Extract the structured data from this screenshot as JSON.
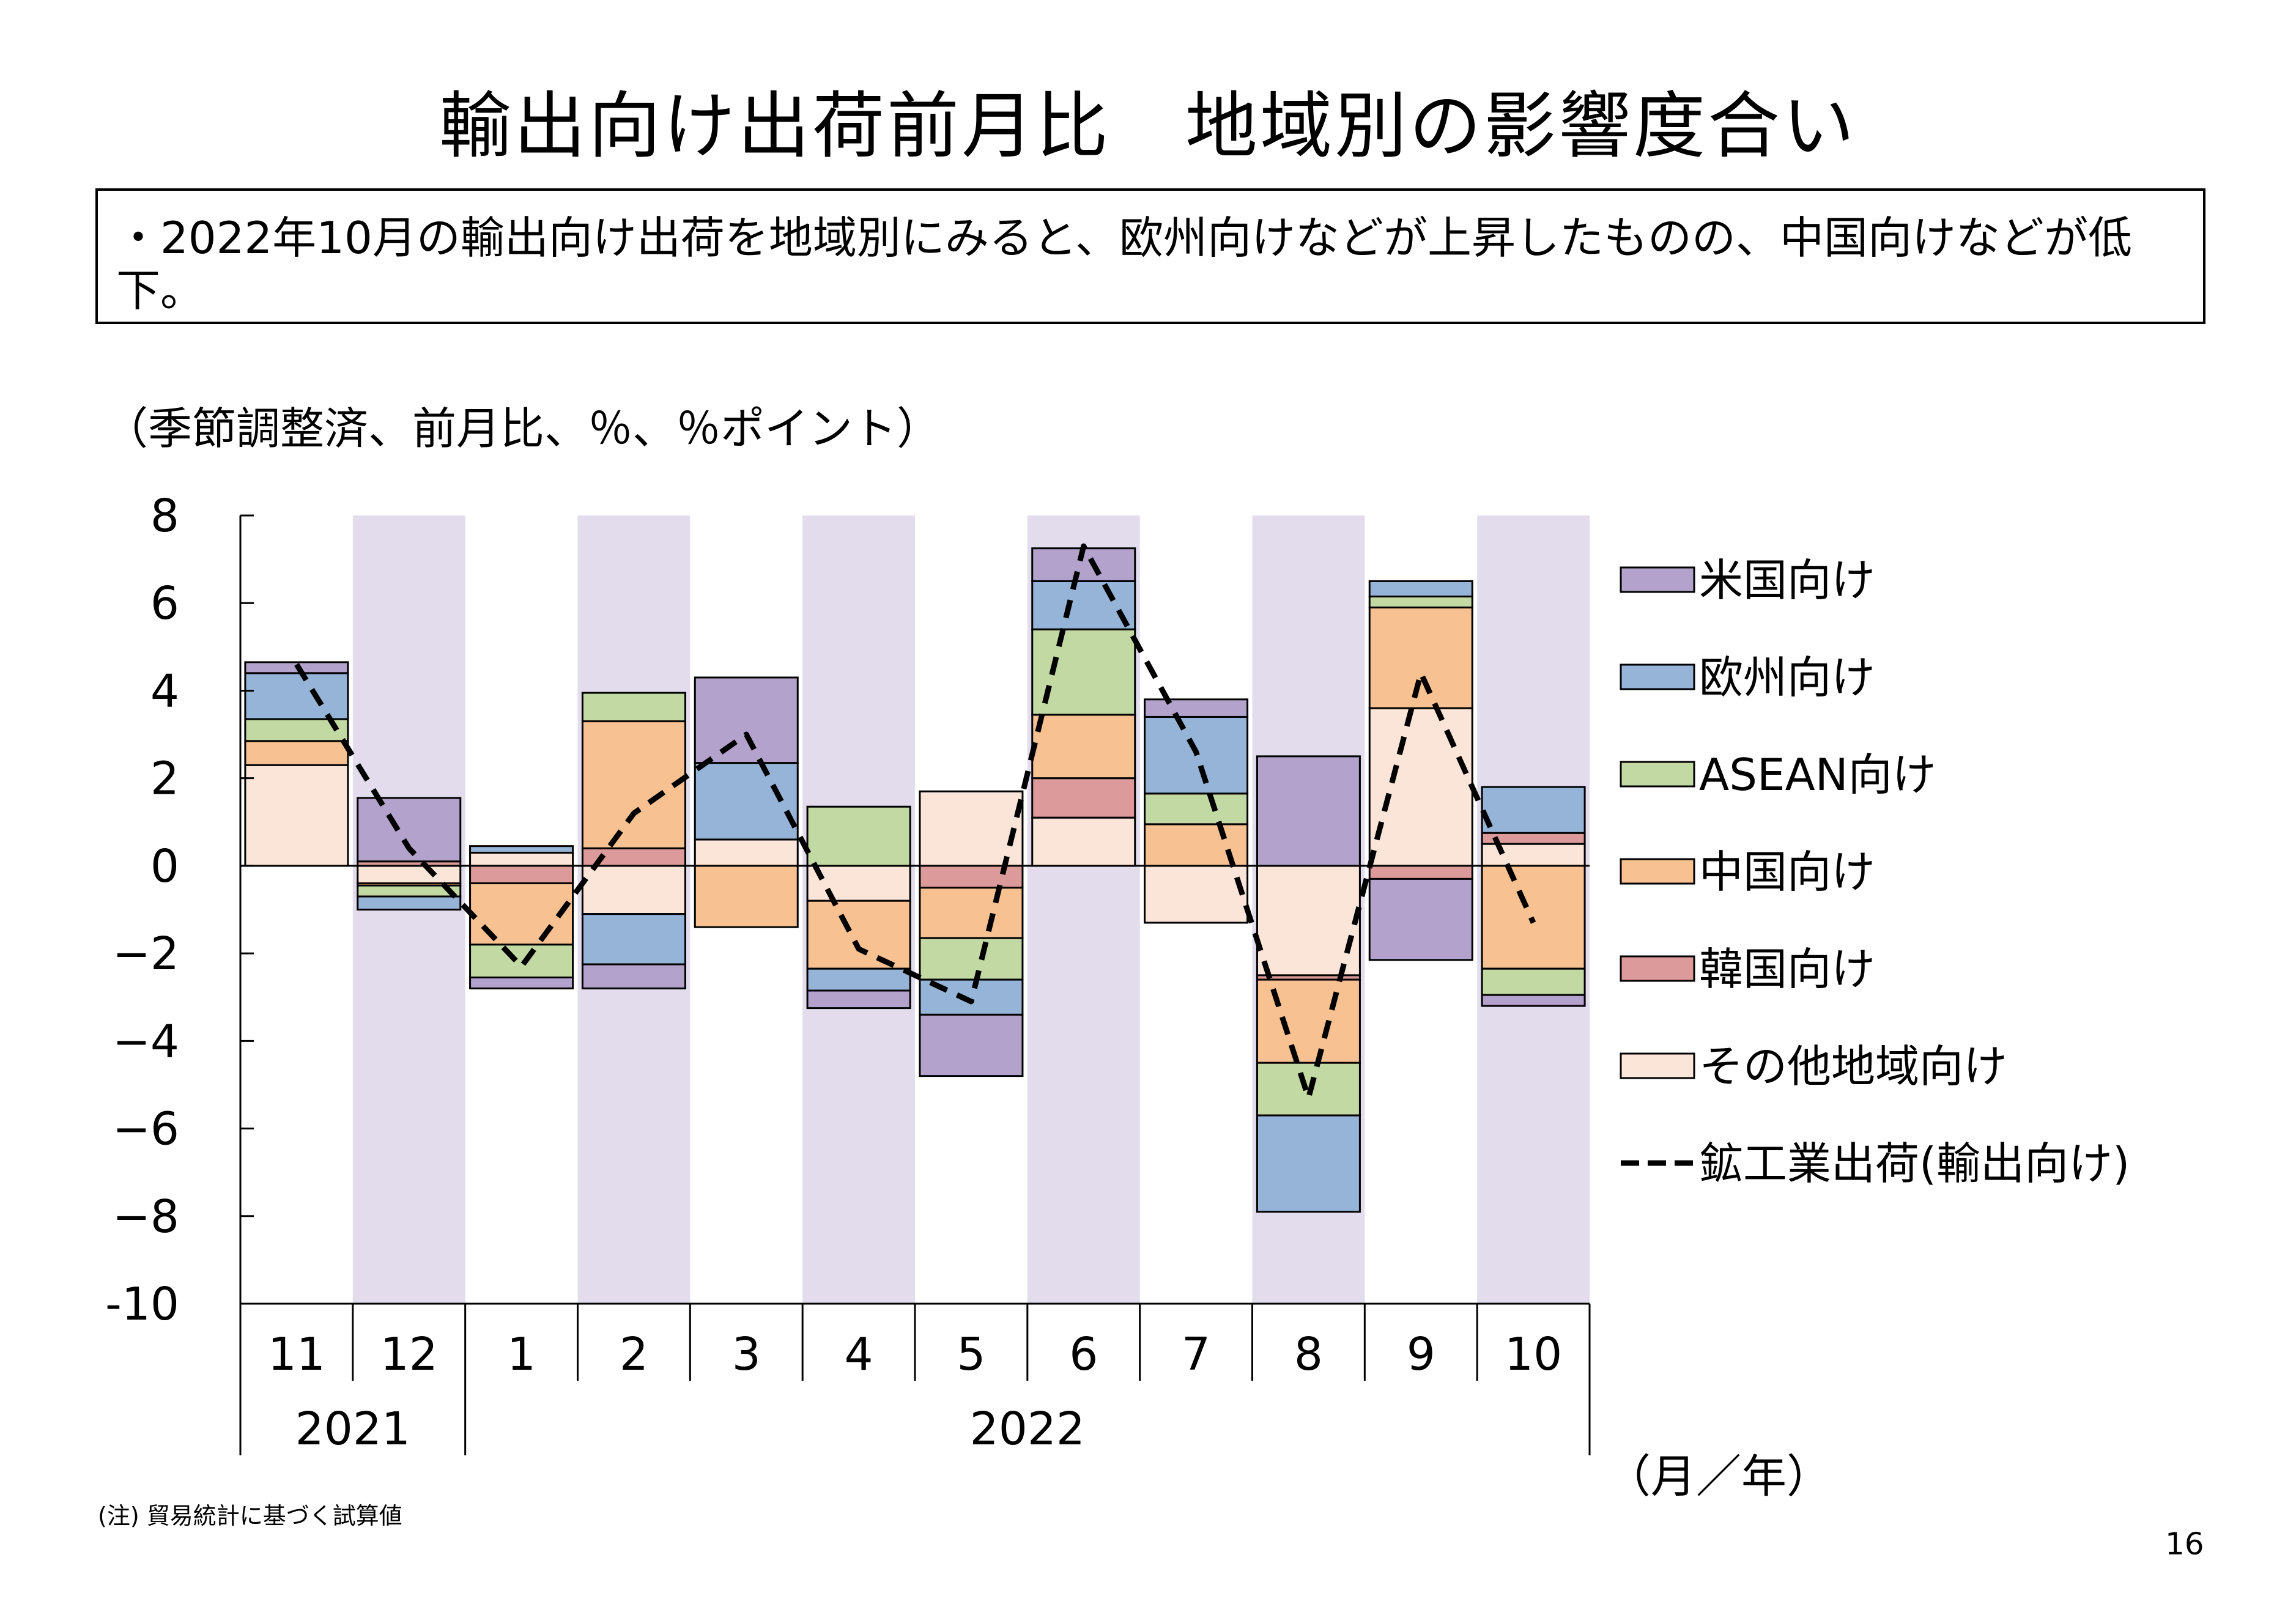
{
  "header": {
    "title": "輸出向け出荷前月比　地域別の影響度合い",
    "summary": "・2022年10月の輸出向け出荷を地域別にみると、欧州向けなどが上昇したものの、中国向けなどが低下。"
  },
  "footer": {
    "note": "(注) 貿易統計に基づく試算値",
    "page_number": "16"
  },
  "chart_data": {
    "type": "bar",
    "stacked": true,
    "unit_label": "（季節調整済、前月比、％、％ポイント）",
    "x_axis_label": "（月／年）",
    "categories": [
      "11",
      "12",
      "1",
      "2",
      "3",
      "4",
      "5",
      "6",
      "7",
      "8",
      "9",
      "10"
    ],
    "year_groups": [
      {
        "label": "2021",
        "start": 0,
        "end": 1
      },
      {
        "label": "2022",
        "start": 2,
        "end": 11
      }
    ],
    "shaded_months": [
      1,
      3,
      5,
      7,
      9,
      11
    ],
    "ylim": [
      -10,
      8
    ],
    "yticks": [
      8,
      6,
      4,
      2,
      0,
      -2,
      -4,
      -6,
      -8,
      -10
    ],
    "ytick_labels": [
      "8",
      "6",
      "4",
      "2",
      "0",
      "−2",
      "−4",
      "−6",
      "−8",
      "-10"
    ],
    "legend_position": "right",
    "colors": {
      "shade": "#e2dcec",
      "us": "#b3a2cb",
      "eu": "#95b4d7",
      "asean": "#c3d9a3",
      "china": "#f7c192",
      "korea": "#dd9a9a",
      "other": "#fbe5d8",
      "line": "#000000"
    },
    "series": [
      {
        "key": "other",
        "name": "その他地域向け",
        "values": [
          2.3,
          -0.4,
          0.3,
          -1.1,
          0.6,
          -0.8,
          1.7,
          1.1,
          -1.3,
          -2.5,
          3.6,
          0.5
        ]
      },
      {
        "key": "korea",
        "name": "韓国向け",
        "values": [
          0.0,
          0.1,
          -0.4,
          0.4,
          0.0,
          0.0,
          -0.5,
          0.9,
          0.0,
          -0.1,
          -0.3,
          0.25
        ]
      },
      {
        "key": "china",
        "name": "中国向け",
        "values": [
          0.55,
          -0.05,
          -1.4,
          2.9,
          -1.4,
          -1.55,
          -1.15,
          1.45,
          0.95,
          -1.9,
          2.3,
          -2.35
        ]
      },
      {
        "key": "asean",
        "name": "ASEAN向け",
        "values": [
          0.5,
          -0.25,
          -0.75,
          0.65,
          0.0,
          1.35,
          -0.95,
          1.95,
          0.7,
          -1.2,
          0.25,
          -0.6
        ]
      },
      {
        "key": "eu",
        "name": "欧州向け",
        "values": [
          1.05,
          -0.3,
          0.15,
          -1.15,
          1.75,
          -0.5,
          -0.8,
          1.1,
          1.75,
          -2.2,
          0.35,
          1.05
        ]
      },
      {
        "key": "us",
        "name": "米国向け",
        "values": [
          0.25,
          1.45,
          -0.25,
          -0.55,
          1.95,
          -0.4,
          -1.4,
          0.75,
          0.4,
          2.5,
          -1.85,
          -0.25
        ]
      }
    ],
    "legend_order": [
      "us",
      "eu",
      "asean",
      "china",
      "korea",
      "other",
      "line"
    ],
    "line": {
      "key": "line",
      "name": "鉱工業出荷(輸出向け)",
      "values": [
        4.6,
        0.4,
        -2.3,
        1.2,
        3.0,
        -1.9,
        -3.1,
        7.3,
        2.6,
        -5.3,
        4.4,
        -1.3
      ]
    }
  }
}
